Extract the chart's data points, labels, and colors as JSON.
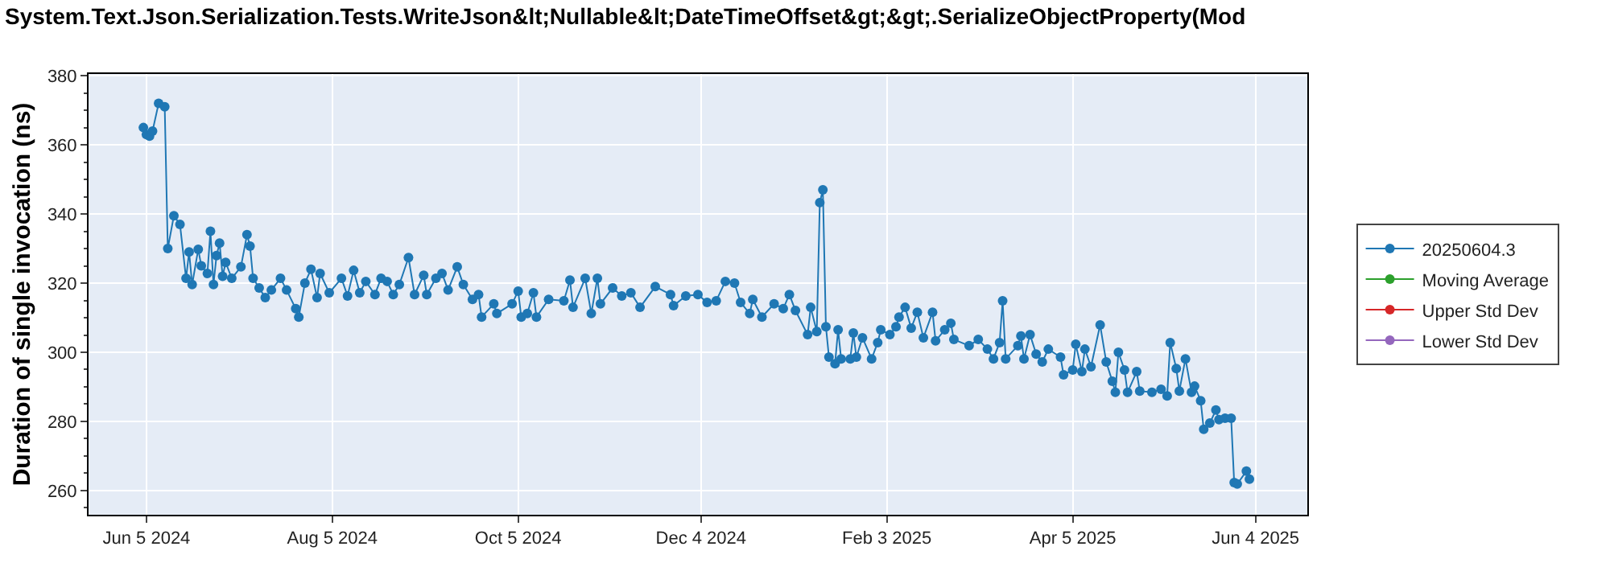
{
  "chart_data": {
    "type": "line",
    "title": "System.Text.Json.Serialization.Tests.WriteJson&lt;Nullable&lt;DateTimeOffset&gt;&gt;.SerializeObjectProperty(Mod",
    "ylabel": "Duration of single invocation (ns)",
    "x": [
      "2024-06-04",
      "2024-06-05",
      "2024-06-06",
      "2024-06-07",
      "2024-06-09",
      "2024-06-11",
      "2024-06-12",
      "2024-06-14",
      "2024-06-16",
      "2024-06-18",
      "2024-06-19",
      "2024-06-20",
      "2024-06-22",
      "2024-06-23",
      "2024-06-25",
      "2024-06-26",
      "2024-06-27",
      "2024-06-28",
      "2024-06-29",
      "2024-06-30",
      "2024-07-01",
      "2024-07-03",
      "2024-07-06",
      "2024-07-08",
      "2024-07-09",
      "2024-07-10",
      "2024-07-12",
      "2024-07-14",
      "2024-07-16",
      "2024-07-19",
      "2024-07-21",
      "2024-07-24",
      "2024-07-25",
      "2024-07-27",
      "2024-07-29",
      "2024-07-31",
      "2024-08-01",
      "2024-08-04",
      "2024-08-08",
      "2024-08-10",
      "2024-08-12",
      "2024-08-14",
      "2024-08-16",
      "2024-08-19",
      "2024-08-21",
      "2024-08-23",
      "2024-08-25",
      "2024-08-27",
      "2024-08-30",
      "2024-09-01",
      "2024-09-04",
      "2024-09-05",
      "2024-09-08",
      "2024-09-10",
      "2024-09-12",
      "2024-09-15",
      "2024-09-17",
      "2024-09-20",
      "2024-09-22",
      "2024-09-23",
      "2024-09-27",
      "2024-09-28",
      "2024-10-03",
      "2024-10-05",
      "2024-10-06",
      "2024-10-08",
      "2024-10-10",
      "2024-10-11",
      "2024-10-15",
      "2024-10-20",
      "2024-10-22",
      "2024-10-23",
      "2024-10-27",
      "2024-10-29",
      "2024-10-31",
      "2024-11-01",
      "2024-11-05",
      "2024-11-08",
      "2024-11-11",
      "2024-11-14",
      "2024-11-19",
      "2024-11-24",
      "2024-11-25",
      "2024-11-29",
      "2024-12-03",
      "2024-12-06",
      "2024-12-09",
      "2024-12-12",
      "2024-12-15",
      "2024-12-17",
      "2024-12-20",
      "2024-12-21",
      "2024-12-24",
      "2024-12-28",
      "2024-12-31",
      "2025-01-02",
      "2025-01-04",
      "2025-01-08",
      "2025-01-09",
      "2025-01-11",
      "2025-01-12",
      "2025-01-13",
      "2025-01-14",
      "2025-01-15",
      "2025-01-17",
      "2025-01-18",
      "2025-01-19",
      "2025-01-22",
      "2025-01-23",
      "2025-01-24",
      "2025-01-26",
      "2025-01-29",
      "2025-01-31",
      "2025-02-01",
      "2025-02-04",
      "2025-02-06",
      "2025-02-07",
      "2025-02-09",
      "2025-02-11",
      "2025-02-13",
      "2025-02-15",
      "2025-02-18",
      "2025-02-19",
      "2025-02-22",
      "2025-02-24",
      "2025-02-25",
      "2025-03-02",
      "2025-03-05",
      "2025-03-08",
      "2025-03-10",
      "2025-03-12",
      "2025-03-13",
      "2025-03-14",
      "2025-03-18",
      "2025-03-19",
      "2025-03-20",
      "2025-03-22",
      "2025-03-24",
      "2025-03-26",
      "2025-03-28",
      "2025-04-01",
      "2025-04-02",
      "2025-04-05",
      "2025-04-06",
      "2025-04-08",
      "2025-04-09",
      "2025-04-11",
      "2025-04-14",
      "2025-04-16",
      "2025-04-18",
      "2025-04-19",
      "2025-04-20",
      "2025-04-22",
      "2025-04-23",
      "2025-04-26",
      "2025-04-27",
      "2025-05-01",
      "2025-05-04",
      "2025-05-06",
      "2025-05-07",
      "2025-05-09",
      "2025-05-10",
      "2025-05-12",
      "2025-05-14",
      "2025-05-15",
      "2025-05-17",
      "2025-05-18",
      "2025-05-20",
      "2025-05-22",
      "2025-05-23",
      "2025-05-25",
      "2025-05-27",
      "2025-05-28",
      "2025-05-29",
      "2025-06-01",
      "2025-06-02"
    ],
    "series": [
      {
        "name": "20250604.3",
        "color": "#1f77b4",
        "values": [
          365,
          363,
          362.5,
          364,
          372,
          371,
          330,
          339.5,
          337,
          321.4,
          329,
          319.6,
          329.8,
          325,
          322.8,
          335,
          319.6,
          328,
          331.6,
          322,
          326,
          321.4,
          324.7,
          334,
          330.7,
          321.4,
          318.6,
          315.8,
          318,
          321.4,
          318,
          312.6,
          310.2,
          320,
          324,
          315.8,
          322.8,
          317.2,
          321.4,
          316.3,
          323.7,
          317.2,
          320.5,
          316.7,
          321.4,
          320.5,
          316.7,
          319.6,
          327.4,
          316.7,
          322.3,
          316.7,
          321.4,
          322.8,
          318,
          324.7,
          319.6,
          315.3,
          316.7,
          310.2,
          314,
          311.2,
          314,
          317.7,
          310.2,
          311.2,
          317.2,
          310.2,
          315.3,
          314.9,
          320.9,
          313,
          321.4,
          311.2,
          321.4,
          314,
          318.6,
          316.3,
          317.2,
          313,
          319,
          316.7,
          313.5,
          316.3,
          316.7,
          314.4,
          314.9,
          320.5,
          320,
          314.4,
          311.2,
          315.3,
          310.2,
          314,
          312.6,
          316.7,
          312.1,
          305.1,
          313,
          306,
          343.3,
          347,
          307.4,
          298.6,
          296.7,
          306.5,
          298.1,
          298.1,
          305.6,
          298.6,
          304.2,
          298.1,
          302.8,
          306.5,
          305.1,
          307.4,
          310.2,
          313,
          307,
          311.6,
          304.2,
          311.6,
          303.3,
          306.5,
          308.4,
          303.7,
          301.9,
          303.7,
          300.9,
          298.1,
          302.8,
          314.9,
          298.1,
          301.9,
          304.7,
          298.1,
          305.1,
          299.5,
          297.2,
          300.9,
          298.6,
          293.5,
          294.9,
          302.3,
          294.4,
          300.9,
          295.8,
          307.9,
          297.2,
          291.6,
          288.4,
          300,
          294.9,
          288.4,
          294.4,
          288.8,
          288.4,
          289.3,
          287.4,
          302.8,
          295.3,
          288.8,
          298.1,
          288.4,
          290.2,
          286,
          277.7,
          279.5,
          283.3,
          280.5,
          280.9,
          280.9,
          262.3,
          261.9,
          265.6,
          263.3
        ]
      },
      {
        "name": "Moving Average",
        "color": "#2ca02c",
        "values": [
          null,
          null,
          null,
          null,
          null,
          null,
          null,
          null,
          null,
          null,
          null,
          null,
          null,
          null,
          null,
          null,
          null,
          null,
          null,
          null,
          null,
          null,
          null,
          null,
          null,
          null,
          null,
          null,
          null,
          null,
          null,
          null,
          null,
          null,
          null,
          null,
          null,
          null,
          null,
          null,
          null,
          null,
          null,
          null,
          null,
          null,
          null,
          null,
          null,
          null,
          null,
          null,
          null,
          null,
          null,
          null,
          null,
          null,
          null,
          null,
          null,
          null,
          null,
          null,
          null,
          null,
          null,
          null,
          null,
          null,
          null,
          null,
          null,
          null,
          null,
          null,
          null,
          null,
          null,
          null,
          null,
          null,
          null,
          null,
          null,
          null,
          null,
          null,
          null,
          null,
          null,
          null,
          null,
          null,
          null,
          null,
          null,
          null,
          null,
          null,
          null,
          null,
          null,
          null,
          null,
          null,
          null,
          null,
          null,
          null,
          null,
          null,
          null,
          null,
          null,
          null,
          null,
          null,
          null,
          null,
          null,
          null,
          null,
          null,
          null,
          null,
          null,
          null,
          null,
          null,
          null,
          null,
          null,
          null,
          null,
          null,
          null,
          null,
          null,
          null,
          null,
          null,
          null,
          null,
          null,
          null,
          null,
          null,
          null,
          null,
          null,
          null,
          null,
          null,
          null,
          null,
          null,
          null,
          null,
          null,
          null,
          null,
          null,
          null,
          null,
          null,
          null,
          null,
          null,
          null,
          null,
          null,
          null,
          null,
          null,
          null
        ]
      },
      {
        "name": "Upper Std Dev",
        "color": "#d62728",
        "values": [
          null,
          null,
          null,
          null,
          null,
          null,
          null,
          null,
          null,
          null,
          null,
          null,
          null,
          null,
          null,
          null,
          null,
          null,
          null,
          null,
          null,
          null,
          null,
          null,
          null,
          null,
          null,
          null,
          null,
          null,
          null,
          null,
          null,
          null,
          null,
          null,
          null,
          null,
          null,
          null,
          null,
          null,
          null,
          null,
          null,
          null,
          null,
          null,
          null,
          null,
          null,
          null,
          null,
          null,
          null,
          null,
          null,
          null,
          null,
          null,
          null,
          null,
          null,
          null,
          null,
          null,
          null,
          null,
          null,
          null,
          null,
          null,
          null,
          null,
          null,
          null,
          null,
          null,
          null,
          null,
          null,
          null,
          null,
          null,
          null,
          null,
          null,
          null,
          null,
          null,
          null,
          null,
          null,
          null,
          null,
          null,
          null,
          null,
          null,
          null,
          null,
          null,
          null,
          null,
          null,
          null,
          null,
          null,
          null,
          null,
          null,
          null,
          null,
          null,
          null,
          null,
          null,
          null,
          null,
          null,
          null,
          null,
          null,
          null,
          null,
          null,
          null,
          null,
          null,
          null,
          null,
          null,
          null,
          null,
          null,
          null,
          null,
          null,
          null,
          null,
          null,
          null,
          null,
          null,
          null,
          null,
          null,
          null,
          null,
          null,
          null,
          null,
          null,
          null,
          null,
          null,
          null,
          null,
          null,
          null,
          null,
          null,
          null,
          null,
          null,
          null,
          null,
          null,
          null,
          null,
          null,
          null,
          null,
          null,
          null,
          null
        ]
      },
      {
        "name": "Lower Std Dev",
        "color": "#9467bd",
        "values": [
          null,
          null,
          null,
          null,
          null,
          null,
          null,
          null,
          null,
          null,
          null,
          null,
          null,
          null,
          null,
          null,
          null,
          null,
          null,
          null,
          null,
          null,
          null,
          null,
          null,
          null,
          null,
          null,
          null,
          null,
          null,
          null,
          null,
          null,
          null,
          null,
          null,
          null,
          null,
          null,
          null,
          null,
          null,
          null,
          null,
          null,
          null,
          null,
          null,
          null,
          null,
          null,
          null,
          null,
          null,
          null,
          null,
          null,
          null,
          null,
          null,
          null,
          null,
          null,
          null,
          null,
          null,
          null,
          null,
          null,
          null,
          null,
          null,
          null,
          null,
          null,
          null,
          null,
          null,
          null,
          null,
          null,
          null,
          null,
          null,
          null,
          null,
          null,
          null,
          null,
          null,
          null,
          null,
          null,
          null,
          null,
          null,
          null,
          null,
          null,
          null,
          null,
          null,
          null,
          null,
          null,
          null,
          null,
          null,
          null,
          null,
          null,
          null,
          null,
          null,
          null,
          null,
          null,
          null,
          null,
          null,
          null,
          null,
          null,
          null,
          null,
          null,
          null,
          null,
          null,
          null,
          null,
          null,
          null,
          null,
          null,
          null,
          null,
          null,
          null,
          null,
          null,
          null,
          null,
          null,
          null,
          null,
          null,
          null,
          null,
          null,
          null,
          null,
          null,
          null,
          null,
          null,
          null,
          null,
          null,
          null,
          null,
          null,
          null,
          null,
          null,
          null,
          null,
          null,
          null,
          null,
          null,
          null,
          null,
          null,
          null
        ]
      }
    ],
    "xlim": [
      "2024-05-17",
      "2025-06-21"
    ],
    "xticks": [
      {
        "value": "2024-06-05",
        "label": "Jun 5 2024"
      },
      {
        "value": "2024-08-05",
        "label": "Aug 5 2024"
      },
      {
        "value": "2024-10-05",
        "label": "Oct 5 2024"
      },
      {
        "value": "2024-12-04",
        "label": "Dec 4 2024"
      },
      {
        "value": "2025-02-03",
        "label": "Feb 3 2025"
      },
      {
        "value": "2025-04-05",
        "label": "Apr 5 2025"
      },
      {
        "value": "2025-06-04",
        "label": "Jun 4 2025"
      }
    ],
    "ylim": [
      253,
      380.5
    ],
    "yticks": [
      260,
      280,
      300,
      320,
      340,
      360,
      380
    ],
    "grid": true,
    "legend": "right",
    "marker": "circle",
    "line_style": "solid"
  }
}
